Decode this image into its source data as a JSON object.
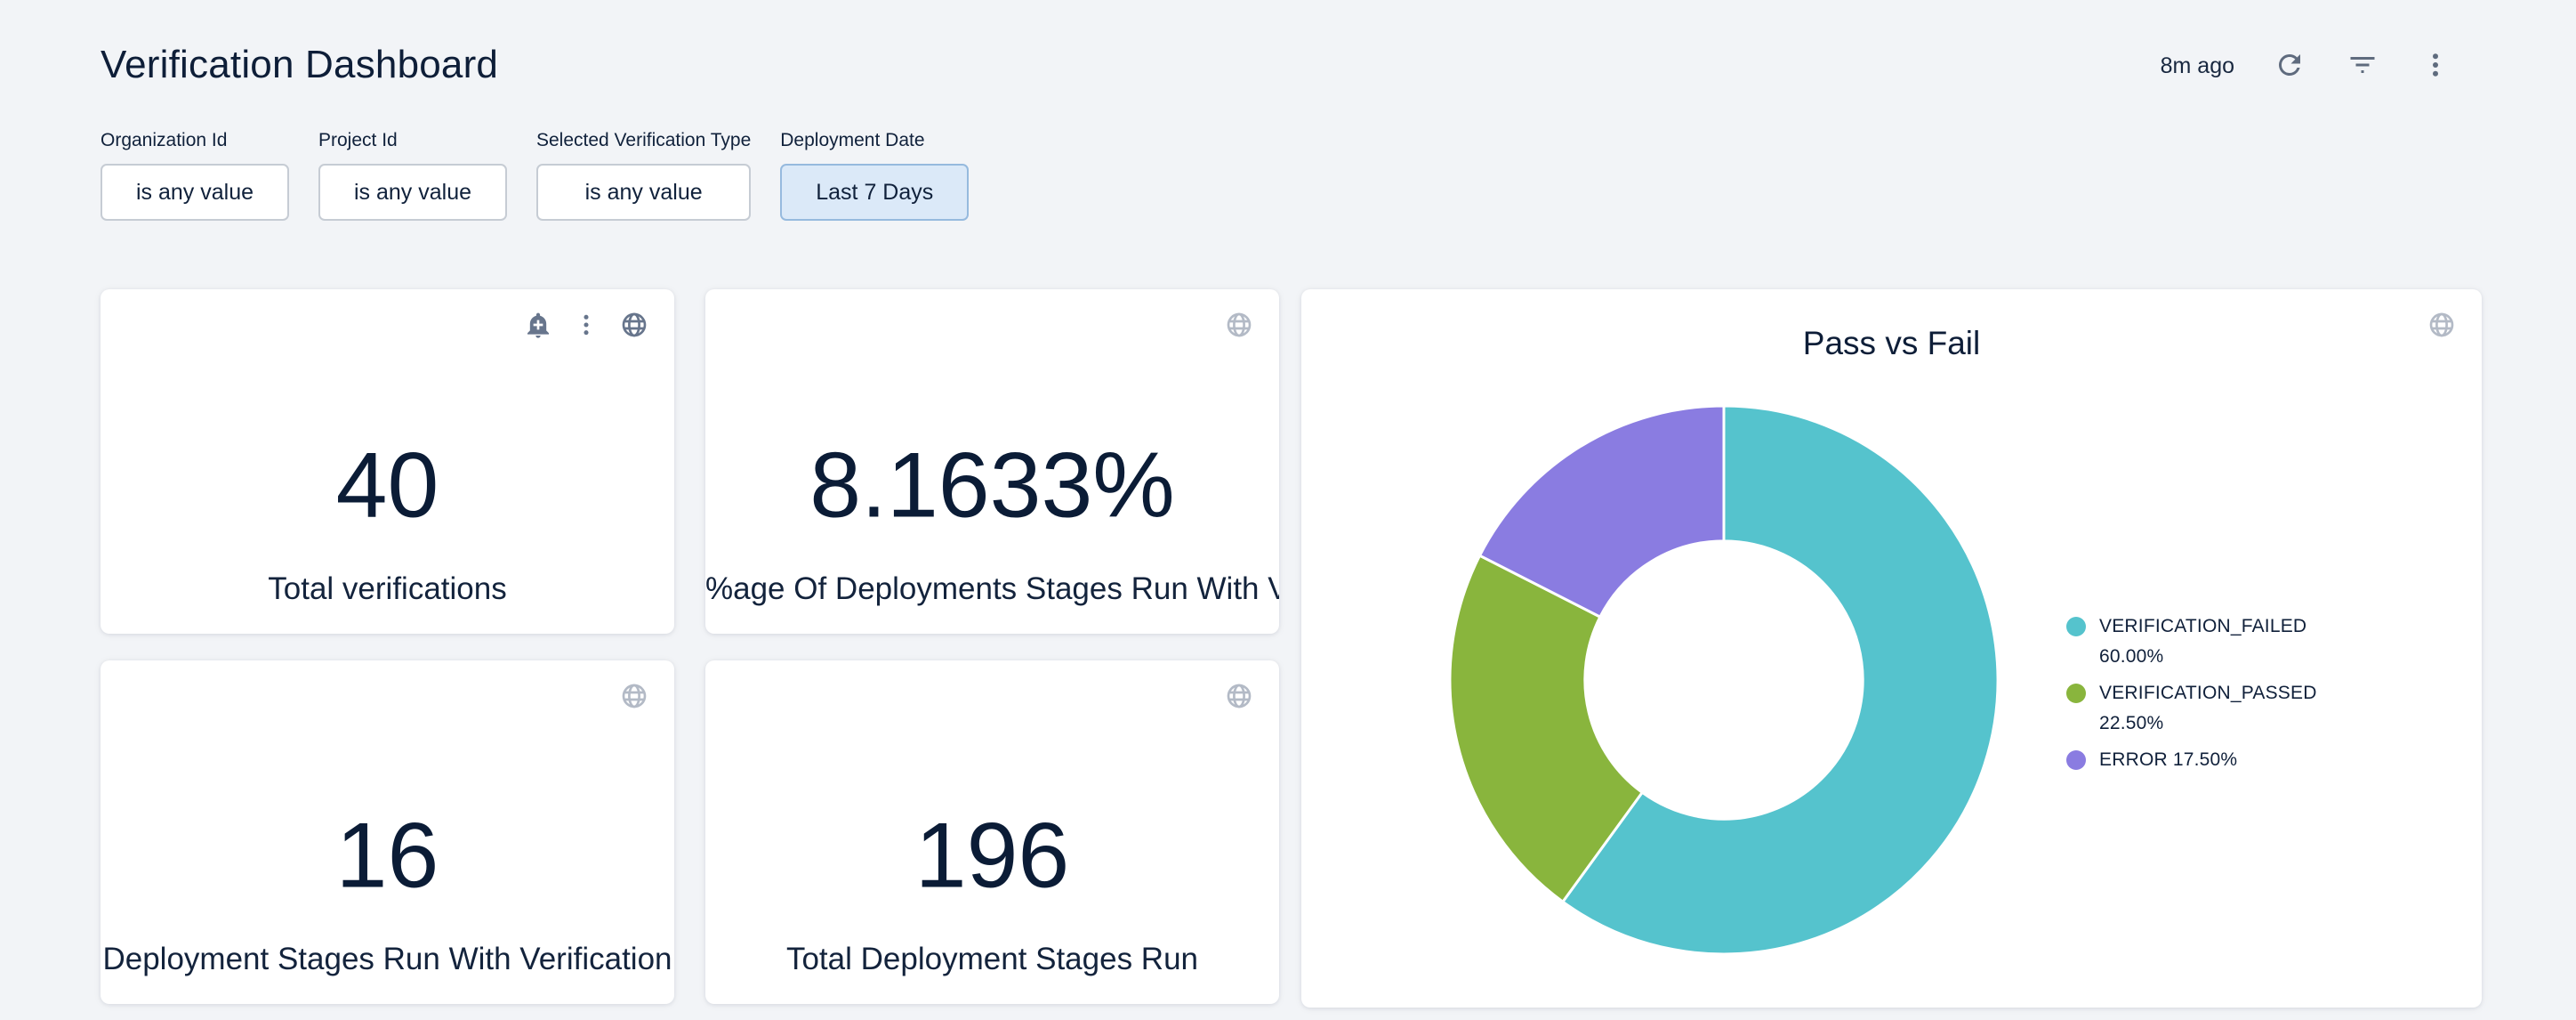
{
  "page": {
    "title": "Verification Dashboard",
    "last_updated": "8m ago"
  },
  "filters": [
    {
      "label": "Organization Id",
      "value": "is any value",
      "active": false
    },
    {
      "label": "Project Id",
      "value": "is any value",
      "active": false
    },
    {
      "label": "Selected Verification Type",
      "value": "is any value",
      "active": false
    },
    {
      "label": "Deployment Date",
      "value": "Last 7 Days",
      "active": true
    }
  ],
  "tiles": [
    {
      "value": "40",
      "label": "Total verifications"
    },
    {
      "value": "8.1633%",
      "label": "%age Of Deployments Stages Run With V…"
    },
    {
      "value": "16",
      "label": "Deployment Stages Run With Verification"
    },
    {
      "value": "196",
      "label": "Total Deployment Stages Run"
    }
  ],
  "chart_data": {
    "type": "pie",
    "title": "Pass vs Fail",
    "donut": true,
    "start_angle_deg": 0,
    "direction": "clockwise",
    "inner_radius_ratio": 0.507,
    "legend_position": "right",
    "slices": [
      {
        "label": "VERIFICATION_FAILED",
        "value": 60.0,
        "display": "60.00%",
        "color": "#55c3cd"
      },
      {
        "label": "VERIFICATION_PASSED",
        "value": 22.5,
        "display": "22.50%",
        "color": "#89b53d"
      },
      {
        "label": "ERROR",
        "value": 17.5,
        "display": "17.50%",
        "color": "#8a7ce1"
      }
    ]
  },
  "colors": {
    "page_background": "#f2f4f7",
    "card_background": "#ffffff",
    "text_primary": "#0e1e38",
    "icon_dark": "#67758c",
    "icon_light": "#b3bac6",
    "filter_active_bg": "#dbe9f8",
    "filter_active_border": "#96bade"
  }
}
